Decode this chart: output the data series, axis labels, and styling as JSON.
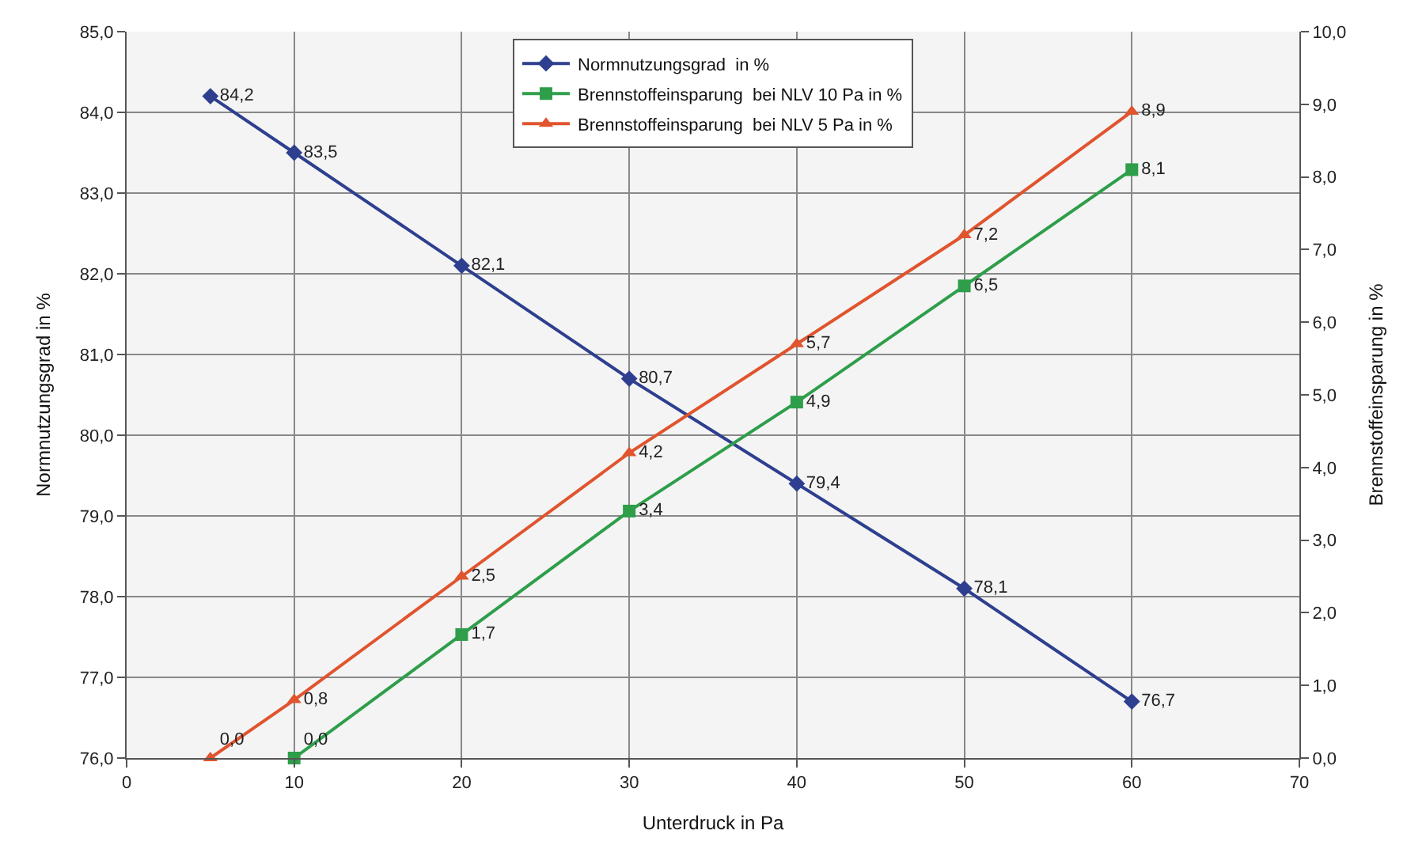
{
  "chart_data": {
    "type": "line",
    "xlabel": "Unterdruck in Pa",
    "ylabel": "Normnutzungsgrad in %",
    "y2label": "Brennstoffeinsparung in %",
    "xlim": [
      0,
      70
    ],
    "xticks": [
      0,
      10,
      20,
      30,
      40,
      50,
      60,
      70
    ],
    "ylim": [
      76,
      85
    ],
    "yticks": [
      {
        "value": 76,
        "label": "76,0"
      },
      {
        "value": 77,
        "label": "77,0"
      },
      {
        "value": 78,
        "label": "78,0"
      },
      {
        "value": 79,
        "label": "79,0"
      },
      {
        "value": 80,
        "label": "80,0"
      },
      {
        "value": 81,
        "label": "81,0"
      },
      {
        "value": 82,
        "label": "82,0"
      },
      {
        "value": 83,
        "label": "83,0"
      },
      {
        "value": 84,
        "label": "84,0"
      },
      {
        "value": 85,
        "label": "85,0"
      }
    ],
    "y2lim": [
      0,
      10
    ],
    "y2ticks": [
      {
        "value": 0,
        "label": "0,0"
      },
      {
        "value": 1,
        "label": "1,0"
      },
      {
        "value": 2,
        "label": "2,0"
      },
      {
        "value": 3,
        "label": "3,0"
      },
      {
        "value": 4,
        "label": "4,0"
      },
      {
        "value": 5,
        "label": "5,0"
      },
      {
        "value": 6,
        "label": "6,0"
      },
      {
        "value": 7,
        "label": "7,0"
      },
      {
        "value": 8,
        "label": "8,0"
      },
      {
        "value": 9,
        "label": "9,0"
      },
      {
        "value": 10,
        "label": "10,0"
      }
    ],
    "grid": true,
    "legend": "top",
    "line_style": "solid",
    "series": [
      {
        "name": "Normnutzungsgrad  in %",
        "color": "#2e3f8f",
        "marker": "diamond",
        "x": [
          5,
          10,
          20,
          30,
          40,
          50,
          60
        ],
        "values": [
          84.2,
          83.5,
          82.1,
          80.7,
          79.4,
          78.1,
          76.7
        ],
        "value_labels": [
          "84,2",
          "83,5",
          "82,1",
          "80,7",
          "79,4",
          "78,1",
          "76,7"
        ]
      },
      {
        "name": "Brennstoffeinsparung  bei NLV 10 Pa in %",
        "color": "#2e9e4a",
        "marker": "square",
        "axis": "y2",
        "x": [
          10,
          20,
          30,
          40,
          50,
          60
        ],
        "values": [
          0.0,
          1.7,
          3.4,
          4.9,
          6.5,
          8.1
        ],
        "value_labels": [
          "0,0",
          "1,7",
          "3,4",
          "4,9",
          "6,5",
          "8,1"
        ]
      },
      {
        "name": "Brennstoffeinsparung  bei NLV 5 Pa in %",
        "color": "#e0542e",
        "marker": "triangle",
        "axis": "y2",
        "x": [
          5,
          10,
          20,
          30,
          40,
          50,
          60
        ],
        "values": [
          0.0,
          0.8,
          2.5,
          4.2,
          5.7,
          7.2,
          8.9
        ],
        "value_labels": [
          "0,0",
          "0,8",
          "2,5",
          "4,2",
          "5,7",
          "7,2",
          "8,9"
        ]
      }
    ]
  }
}
